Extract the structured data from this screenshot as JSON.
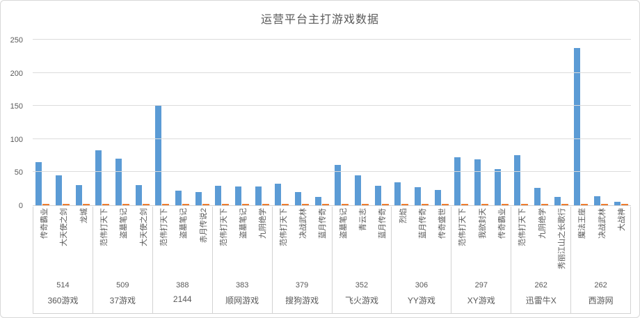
{
  "chart_data": {
    "type": "bar",
    "title": "运营平台主打游戏数据",
    "ylabel": "",
    "xlabel": "",
    "ylim": [
      0,
      250
    ],
    "yticks": [
      0,
      50,
      100,
      150,
      200,
      250
    ],
    "grid": true,
    "legend": "none",
    "colors": {
      "main_series": "#5b9bd5",
      "secondary_series": "#ed7d31"
    },
    "secondary_series_value": 2,
    "groups": [
      {
        "platform": "360游戏",
        "total": "514",
        "games": [
          {
            "name": "传奇霸业",
            "value": 65
          },
          {
            "name": "大天使之剑",
            "value": 45
          },
          {
            "name": "龙城",
            "value": 30
          }
        ]
      },
      {
        "platform": "37游戏",
        "total": "509",
        "games": [
          {
            "name": "范伟打天下",
            "value": 83
          },
          {
            "name": "盗墓笔记",
            "value": 70
          },
          {
            "name": "大天使之剑",
            "value": 30
          }
        ]
      },
      {
        "platform": "2144",
        "total": "388",
        "games": [
          {
            "name": "范伟打天下",
            "value": 150
          },
          {
            "name": "盗墓笔记",
            "value": 22
          },
          {
            "name": "赤月传说2",
            "value": 20
          }
        ]
      },
      {
        "platform": "顺网游戏",
        "total": "383",
        "games": [
          {
            "name": "范伟打天下",
            "value": 29
          },
          {
            "name": "盗墓笔记",
            "value": 28
          },
          {
            "name": "九阴绝学",
            "value": 28
          }
        ]
      },
      {
        "platform": "搜狗游戏",
        "total": "379",
        "games": [
          {
            "name": "范伟打天下",
            "value": 33
          },
          {
            "name": "决战武林",
            "value": 20
          },
          {
            "name": "蓝月传奇",
            "value": 13
          }
        ]
      },
      {
        "platform": "飞火游戏",
        "total": "352",
        "games": [
          {
            "name": "盗墓笔记",
            "value": 61
          },
          {
            "name": "青云志",
            "value": 45
          },
          {
            "name": "蓝月传奇",
            "value": 29
          }
        ]
      },
      {
        "platform": "YY游戏",
        "total": "306",
        "games": [
          {
            "name": "烈焰",
            "value": 35
          },
          {
            "name": "蓝月传奇",
            "value": 27
          },
          {
            "name": "传奇盛世",
            "value": 23
          }
        ]
      },
      {
        "platform": "XY游戏",
        "total": "297",
        "games": [
          {
            "name": "范伟打天下",
            "value": 73
          },
          {
            "name": "我欲封天",
            "value": 69
          },
          {
            "name": "传奇霸业",
            "value": 55
          }
        ]
      },
      {
        "platform": "迅雷牛X",
        "total": "262",
        "games": [
          {
            "name": "范伟打天下",
            "value": 76
          },
          {
            "name": "九阴绝学",
            "value": 26
          },
          {
            "name": "秀丽江山之长歌行",
            "value": 13
          }
        ]
      },
      {
        "platform": "西游网",
        "total": "262",
        "games": [
          {
            "name": "魔法王座",
            "value": 237
          },
          {
            "name": "决战武林",
            "value": 14
          },
          {
            "name": "大战神",
            "value": 5
          }
        ]
      }
    ]
  }
}
